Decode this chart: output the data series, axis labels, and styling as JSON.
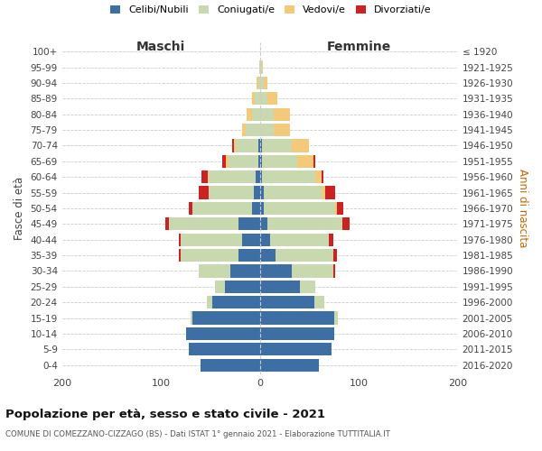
{
  "age_groups": [
    "0-4",
    "5-9",
    "10-14",
    "15-19",
    "20-24",
    "25-29",
    "30-34",
    "35-39",
    "40-44",
    "45-49",
    "50-54",
    "55-59",
    "60-64",
    "65-69",
    "70-74",
    "75-79",
    "80-84",
    "85-89",
    "90-94",
    "95-99",
    "100+"
  ],
  "birth_years": [
    "2016-2020",
    "2011-2015",
    "2006-2010",
    "2001-2005",
    "1996-2000",
    "1991-1995",
    "1986-1990",
    "1981-1985",
    "1976-1980",
    "1971-1975",
    "1966-1970",
    "1961-1965",
    "1956-1960",
    "1951-1955",
    "1946-1950",
    "1941-1945",
    "1936-1940",
    "1931-1935",
    "1926-1930",
    "1921-1925",
    "≤ 1920"
  ],
  "males": {
    "celibi": [
      60,
      72,
      75,
      68,
      48,
      35,
      30,
      22,
      18,
      22,
      8,
      6,
      4,
      2,
      2,
      0,
      0,
      0,
      0,
      0,
      0
    ],
    "coniugati": [
      0,
      0,
      0,
      2,
      6,
      10,
      32,
      58,
      62,
      70,
      60,
      46,
      48,
      30,
      22,
      14,
      8,
      5,
      2,
      1,
      0
    ],
    "vedovi": [
      0,
      0,
      0,
      0,
      0,
      0,
      0,
      0,
      0,
      0,
      0,
      0,
      1,
      2,
      2,
      4,
      5,
      3,
      1,
      0,
      0
    ],
    "divorziati": [
      0,
      0,
      0,
      0,
      0,
      0,
      0,
      2,
      2,
      4,
      4,
      10,
      6,
      4,
      2,
      0,
      0,
      0,
      0,
      0,
      0
    ]
  },
  "females": {
    "nubili": [
      60,
      72,
      75,
      75,
      55,
      40,
      32,
      16,
      10,
      8,
      4,
      4,
      2,
      2,
      2,
      0,
      0,
      0,
      0,
      0,
      0
    ],
    "coniugate": [
      0,
      0,
      0,
      4,
      10,
      16,
      42,
      58,
      60,
      75,
      72,
      58,
      54,
      36,
      30,
      14,
      14,
      8,
      4,
      2,
      0
    ],
    "vedove": [
      0,
      0,
      0,
      0,
      0,
      0,
      0,
      0,
      0,
      0,
      2,
      4,
      6,
      16,
      18,
      16,
      16,
      10,
      4,
      1,
      0
    ],
    "divorziate": [
      0,
      0,
      0,
      0,
      0,
      0,
      2,
      4,
      4,
      8,
      6,
      10,
      2,
      2,
      0,
      0,
      0,
      0,
      0,
      0,
      0
    ]
  },
  "colors": {
    "celibi": "#3d6fa5",
    "coniugati": "#c8d9b0",
    "vedovi": "#f5c97a",
    "divorziati": "#cc2222"
  },
  "legend_labels": [
    "Celibi/Nubili",
    "Coniugati/e",
    "Vedovi/e",
    "Divorziati/e"
  ],
  "xlabel_left": "Maschi",
  "xlabel_right": "Femmine",
  "ylabel_left": "Fasce di età",
  "ylabel_right": "Anni di nascita",
  "title": "Popolazione per età, sesso e stato civile - 2021",
  "subtitle": "COMUNE DI COMEZZANO-CIZZAGO (BS) - Dati ISTAT 1° gennaio 2021 - Elaborazione TUTTITALIA.IT",
  "xlim": 200,
  "bg_color": "#ffffff",
  "grid_color": "#cccccc"
}
